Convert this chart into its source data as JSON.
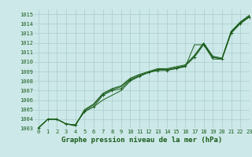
{
  "title": "Graphe pression niveau de la mer (hPa)",
  "bg_color": "#cce8e8",
  "grid_color": "#aacccc",
  "line_color": "#1a5c1a",
  "xlim": [
    -0.5,
    23
  ],
  "ylim": [
    1003,
    1015.5
  ],
  "xticks": [
    0,
    1,
    2,
    3,
    4,
    5,
    6,
    7,
    8,
    9,
    10,
    11,
    12,
    13,
    14,
    15,
    16,
    17,
    18,
    19,
    20,
    21,
    22,
    23
  ],
  "yticks": [
    1003,
    1004,
    1005,
    1006,
    1007,
    1008,
    1009,
    1010,
    1011,
    1012,
    1013,
    1014,
    1015
  ],
  "series": [
    [
      1003.1,
      1004.0,
      1004.0,
      1003.5,
      1003.4,
      1004.8,
      1005.3,
      1006.0,
      1006.5,
      1007.0,
      1008.0,
      1008.5,
      1008.9,
      1009.2,
      1009.2,
      1009.3,
      1009.5,
      1011.8,
      1011.8,
      1010.3,
      1010.3,
      1013.2,
      1014.1,
      1014.8
    ],
    [
      1003.1,
      1004.0,
      1004.0,
      1003.5,
      1003.4,
      1004.8,
      1005.3,
      1006.5,
      1007.0,
      1007.2,
      1008.1,
      1008.5,
      1008.9,
      1009.1,
      1009.1,
      1009.3,
      1009.6,
      1010.5,
      1011.8,
      1010.5,
      1010.3,
      1013.0,
      1014.0,
      1014.7
    ],
    [
      1003.1,
      1004.0,
      1004.0,
      1003.5,
      1003.4,
      1004.9,
      1005.5,
      1006.6,
      1007.1,
      1007.4,
      1008.2,
      1008.6,
      1008.9,
      1009.2,
      1009.2,
      1009.4,
      1009.6,
      1010.6,
      1011.9,
      1010.5,
      1010.3,
      1013.1,
      1014.1,
      1014.8
    ],
    [
      1003.1,
      1004.0,
      1004.0,
      1003.5,
      1003.3,
      1005.0,
      1005.6,
      1006.7,
      1007.2,
      1007.5,
      1008.3,
      1008.7,
      1009.0,
      1009.3,
      1009.3,
      1009.5,
      1009.7,
      1010.7,
      1012.0,
      1010.6,
      1010.4,
      1013.2,
      1014.2,
      1014.9
    ]
  ],
  "marker_series_idx": 1,
  "title_fontsize": 6.5,
  "tick_fontsize": 5.0
}
